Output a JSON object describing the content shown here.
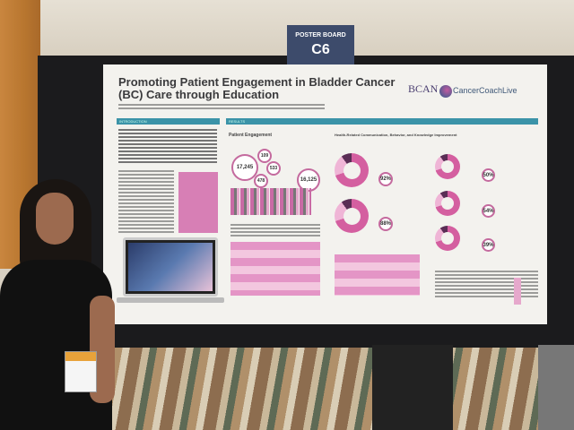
{
  "sign": {
    "label": "POSTER BOARD",
    "code": "C6"
  },
  "poster": {
    "title": "Promoting Patient Engagement in Bladder Cancer (BC) Care through Education",
    "logos": {
      "bcan": "BCAN",
      "coach": "CancerCoachLive"
    },
    "sections": {
      "intro": "INTRODUCTION",
      "results": "RESULTS"
    },
    "results": {
      "heading": "Patient Engagement",
      "stats": [
        "17,245",
        "109",
        "533",
        "478",
        "16,125"
      ],
      "knowledge_heading": "Health-Related Communication, Behavior, and Knowledge Improvement",
      "knowledge_pcts": [
        "92%",
        "88%"
      ],
      "behavior_pcts": [
        "50%",
        "54%",
        "39%"
      ]
    },
    "colors": {
      "accent_teal": "#3b93a8",
      "accent_pink": "#d45fa0",
      "sign": "#3d4b6b"
    }
  }
}
